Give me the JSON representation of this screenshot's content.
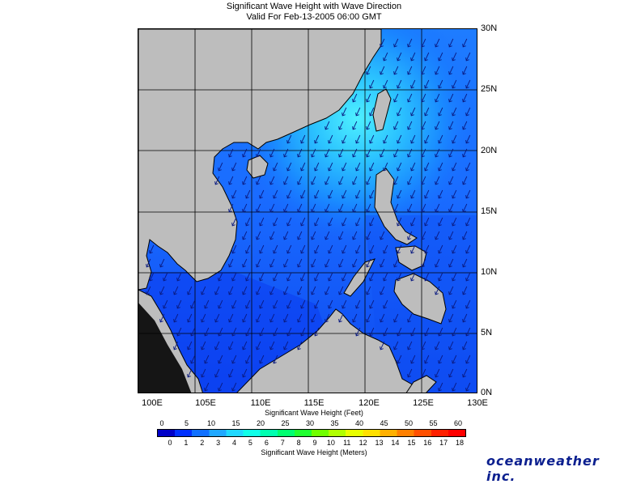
{
  "title": {
    "line1": "Significant Wave Height with Wave Direction",
    "line2": "Valid For Feb-13-2005 06:00 GMT"
  },
  "map": {
    "region": "South China Sea",
    "lat_labels": [
      "30N",
      "25N",
      "20N",
      "15N",
      "10N",
      "5N",
      "0N"
    ],
    "lon_labels": [
      "100E",
      "105E",
      "110E",
      "115E",
      "120E",
      "125E",
      "130E"
    ],
    "land_color": "#bdbdbd",
    "water_color_low": "#0a3dff",
    "water_color_mid": "#1e8dff",
    "water_color_high": "#3fe6ff",
    "arrow_direction": "southwest",
    "grid_step_degrees": 5,
    "lat_range": [
      0,
      30
    ],
    "lon_range": [
      100,
      130
    ]
  },
  "scale": {
    "feet_title": "Significant Wave Height (Feet)",
    "meters_title": "Significant Wave Height (Meters)",
    "feet_ticks": [
      "0",
      "5",
      "10",
      "15",
      "20",
      "25",
      "30",
      "35",
      "40",
      "45",
      "50",
      "55",
      "60"
    ],
    "meter_ticks": [
      "0",
      "1",
      "2",
      "3",
      "4",
      "5",
      "6",
      "7",
      "8",
      "9",
      "10",
      "11",
      "12",
      "13",
      "14",
      "15",
      "16",
      "17",
      "18"
    ],
    "colors": [
      "#0000c8",
      "#0030ff",
      "#1070ff",
      "#20a8ff",
      "#20d8ff",
      "#10ffe8",
      "#00ffb0",
      "#00ff70",
      "#20ff30",
      "#70ff00",
      "#b0ff00",
      "#e8ff00",
      "#ffe000",
      "#ffb000",
      "#ff8000",
      "#ff5000",
      "#ff2000",
      "#ff0000"
    ]
  },
  "brand": "oceanweather inc."
}
